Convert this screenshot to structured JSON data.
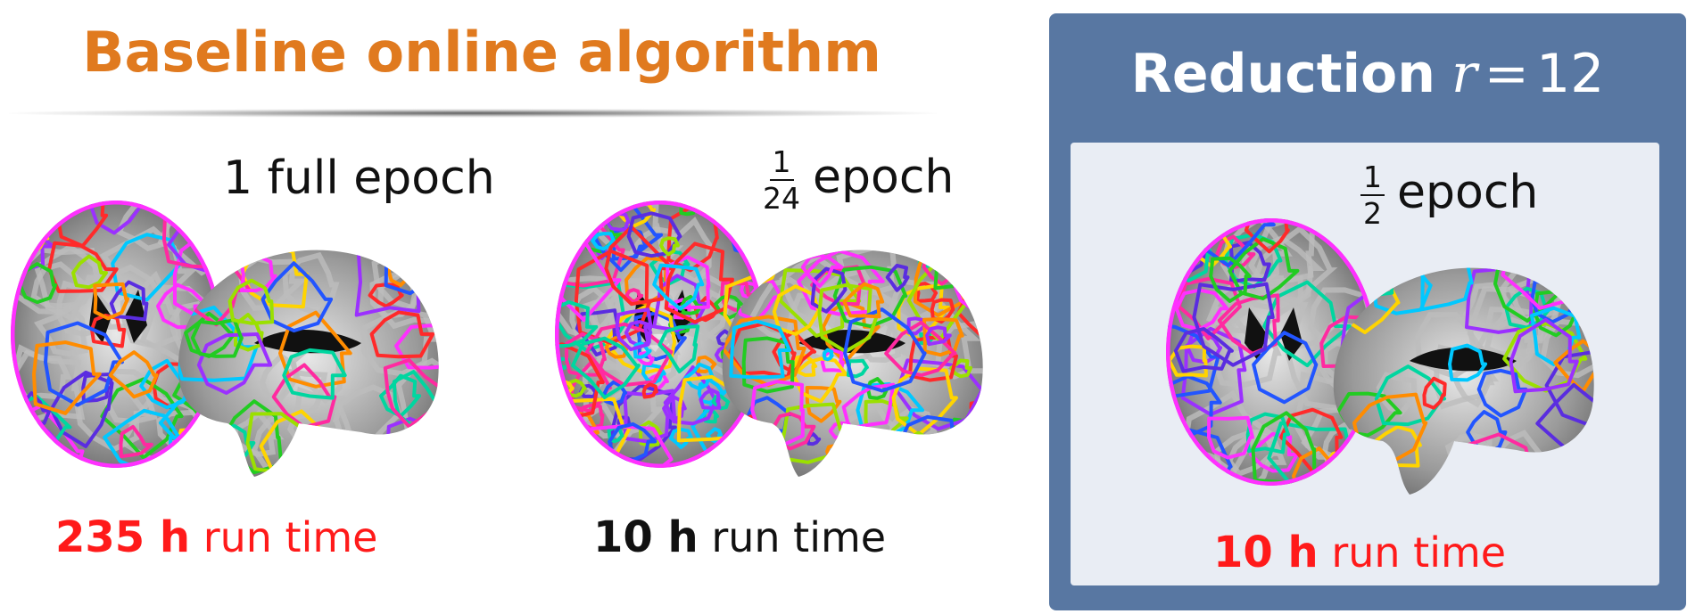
{
  "baseline": {
    "title": "Baseline online algorithm",
    "full_epoch": {
      "label": "1 full epoch",
      "run_value": "235 h",
      "run_text": "run time"
    },
    "partial_epoch": {
      "frac_num": "1",
      "frac_den": "24",
      "label": "epoch",
      "run_value": "10 h",
      "run_text": "run time"
    }
  },
  "reduction": {
    "title": "Reduction",
    "var": "r",
    "eq": "=",
    "value": "12",
    "frac_num": "1",
    "frac_den": "2",
    "label": "epoch",
    "run_value": "10 h",
    "run_text": "run time"
  },
  "colors": {
    "title_orange": "#e07a1f",
    "runtime_red": "#ff1a1a",
    "panel_blue": "#5877a2",
    "panel_inner": "#e9edf4",
    "contours": [
      "#ff2a2a",
      "#ff8c00",
      "#ffd400",
      "#9be000",
      "#22cc22",
      "#00d6a0",
      "#00c8ff",
      "#2255ff",
      "#5a2de0",
      "#9b30ff",
      "#ff30ff",
      "#ff2aa0"
    ]
  }
}
